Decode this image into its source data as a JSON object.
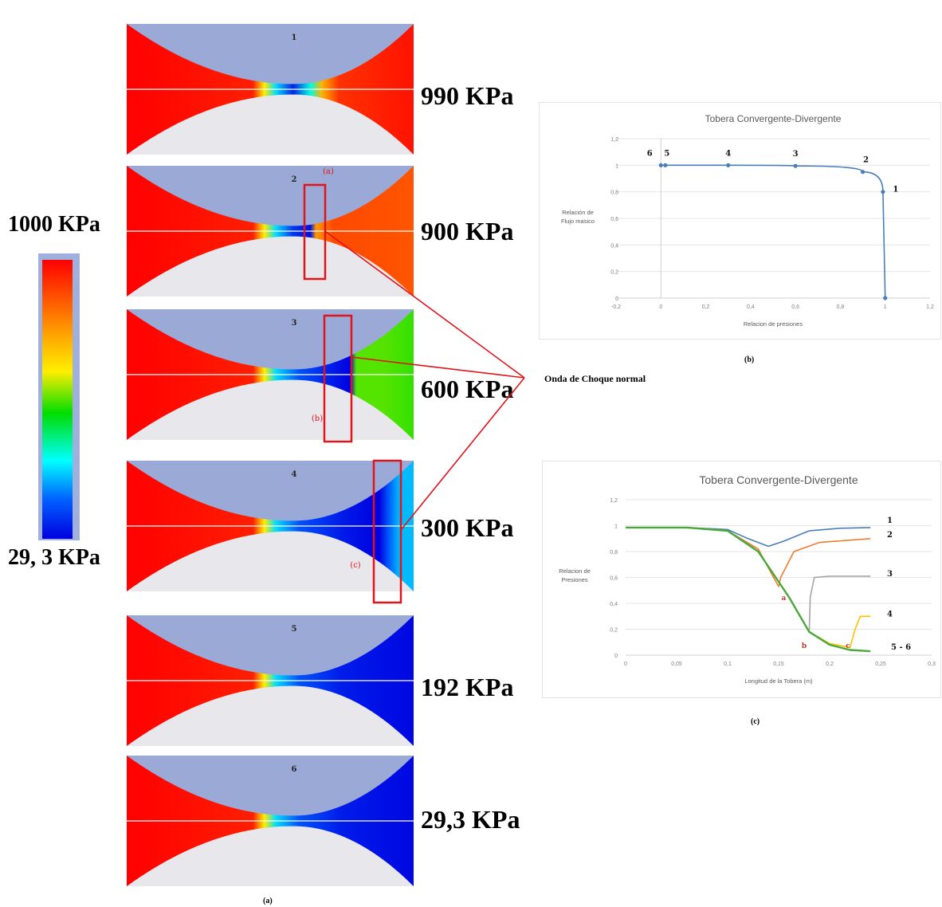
{
  "scale": {
    "top_label": "1000 KPa",
    "bottom_label": "29, 3 KPa"
  },
  "nozzles": [
    {
      "number": "1",
      "pressure": "990 KPa",
      "mark": ""
    },
    {
      "number": "2",
      "pressure": "900 KPa",
      "mark": "(a)"
    },
    {
      "number": "3",
      "pressure": "600 KPa",
      "mark": "(b)"
    },
    {
      "number": "4",
      "pressure": "300 KPa",
      "mark": "(c)"
    },
    {
      "number": "5",
      "pressure": "192 KPa",
      "mark": ""
    },
    {
      "number": "6",
      "pressure": "29,3 KPa",
      "mark": ""
    }
  ],
  "annotation": "Onda de Choque normal",
  "captions": {
    "a": "(a)",
    "b": "(b)",
    "c": "(c)"
  },
  "colors": {
    "shock_box": "#e0141b",
    "series_1": "#4a7ebb",
    "series_2": "#ed7d31",
    "series_3": "#a5a5a5",
    "series_4": "#ffc000",
    "series_5_6": "#48a83a",
    "blade": "#9ba9d6"
  },
  "chart_data": [
    {
      "type": "line",
      "title": "Tobera Convergente-Divergente",
      "xlabel": "Relacion de presiones",
      "ylabel": "Relación de Flujo masico",
      "xlim": [
        -0.2,
        1.2
      ],
      "ylim": [
        0,
        1.2
      ],
      "x_ticks": [
        "-0,2",
        "0",
        "0,2",
        "0,4",
        "0,6",
        "0,8",
        "1",
        "1,2"
      ],
      "y_ticks": [
        "0",
        "0,2",
        "0,4",
        "0,6",
        "0,8",
        "1",
        "1,2"
      ],
      "series": [
        {
          "x": [
            0.0,
            0.02,
            0.3,
            0.6,
            0.9,
            0.99,
            1.0
          ],
          "y": [
            1.0,
            1.0,
            1.0,
            0.995,
            0.95,
            0.8,
            0.0
          ]
        }
      ],
      "point_labels": [
        {
          "text": "6",
          "x": 0.0,
          "y": 1.0
        },
        {
          "text": "5",
          "x": 0.02,
          "y": 1.0
        },
        {
          "text": "4",
          "x": 0.3,
          "y": 1.0
        },
        {
          "text": "3",
          "x": 0.6,
          "y": 0.995
        },
        {
          "text": "2",
          "x": 0.9,
          "y": 0.95
        },
        {
          "text": "1",
          "x": 0.99,
          "y": 0.8
        }
      ],
      "grid": true
    },
    {
      "type": "line",
      "title": "Tobera Convergente-Divergente",
      "xlabel": "Longitud de la Tobera (m)",
      "ylabel": "Relacion de Presiones",
      "xlim": [
        0,
        0.3
      ],
      "ylim": [
        0,
        1.2
      ],
      "x_ticks": [
        "0",
        "0,05",
        "0,1",
        "0,15",
        "0,2",
        "0,25",
        "0,3"
      ],
      "y_ticks": [
        "0",
        "0,2",
        "0,4",
        "0,6",
        "0,8",
        "1",
        "1,2"
      ],
      "series": [
        {
          "name": "1",
          "x": [
            0,
            0.06,
            0.1,
            0.12,
            0.14,
            0.155,
            0.18,
            0.21,
            0.24
          ],
          "y": [
            0.985,
            0.985,
            0.97,
            0.9,
            0.84,
            0.88,
            0.96,
            0.98,
            0.985
          ]
        },
        {
          "name": "2",
          "x": [
            0,
            0.06,
            0.1,
            0.13,
            0.145,
            0.15,
            0.152,
            0.165,
            0.19,
            0.24
          ],
          "y": [
            0.985,
            0.985,
            0.96,
            0.82,
            0.6,
            0.53,
            0.6,
            0.8,
            0.87,
            0.9
          ]
        },
        {
          "name": "3",
          "x": [
            0,
            0.06,
            0.1,
            0.13,
            0.16,
            0.18,
            0.181,
            0.185,
            0.2,
            0.24
          ],
          "y": [
            0.985,
            0.985,
            0.96,
            0.8,
            0.45,
            0.18,
            0.45,
            0.6,
            0.61,
            0.61
          ]
        },
        {
          "name": "4",
          "x": [
            0,
            0.06,
            0.1,
            0.13,
            0.16,
            0.18,
            0.2,
            0.22,
            0.225,
            0.23,
            0.24
          ],
          "y": [
            0.985,
            0.985,
            0.96,
            0.8,
            0.45,
            0.18,
            0.09,
            0.06,
            0.2,
            0.3,
            0.3
          ]
        },
        {
          "name": "5 - 6",
          "x": [
            0,
            0.06,
            0.1,
            0.13,
            0.16,
            0.18,
            0.2,
            0.22,
            0.24
          ],
          "y": [
            0.985,
            0.985,
            0.96,
            0.8,
            0.45,
            0.18,
            0.08,
            0.04,
            0.03
          ]
        }
      ],
      "point_labels": [
        {
          "text": "a",
          "x": 0.155,
          "y": 0.5
        },
        {
          "text": "b",
          "x": 0.175,
          "y": 0.13
        },
        {
          "text": "c",
          "x": 0.218,
          "y": 0.13
        }
      ],
      "grid": true
    }
  ]
}
